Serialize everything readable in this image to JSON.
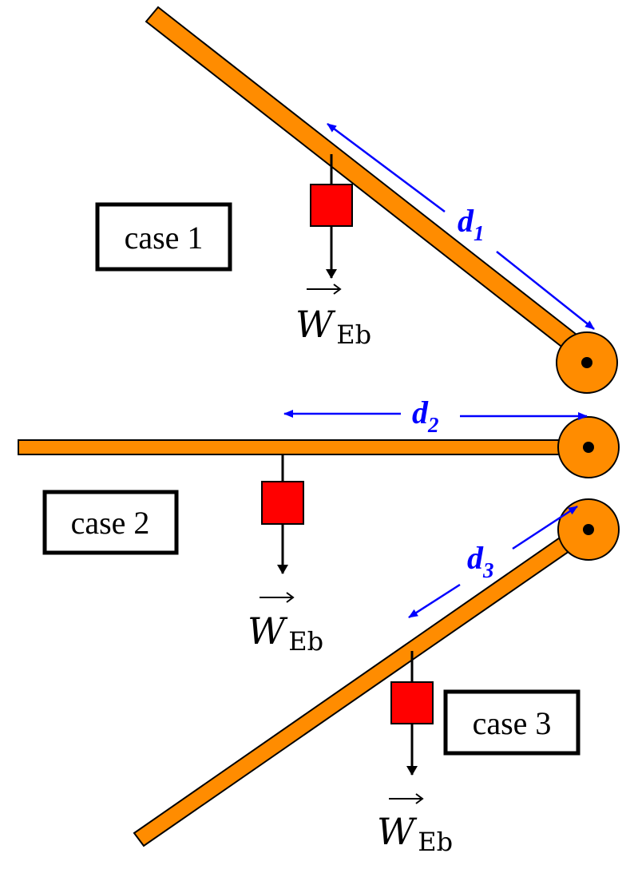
{
  "colors": {
    "rod": "#ff8c00",
    "block": "#ff0000",
    "dimension": "#0000ff",
    "outline": "#000000"
  },
  "cases": [
    {
      "label": "case 1",
      "distance_symbol": "d",
      "distance_index": "1",
      "weight_symbol": "W",
      "weight_subscript": "Eb"
    },
    {
      "label": "case 2",
      "distance_symbol": "d",
      "distance_index": "2",
      "weight_symbol": "W",
      "weight_subscript": "Eb"
    },
    {
      "label": "case 3",
      "distance_symbol": "d",
      "distance_index": "3",
      "weight_symbol": "W",
      "weight_subscript": "Eb"
    }
  ]
}
